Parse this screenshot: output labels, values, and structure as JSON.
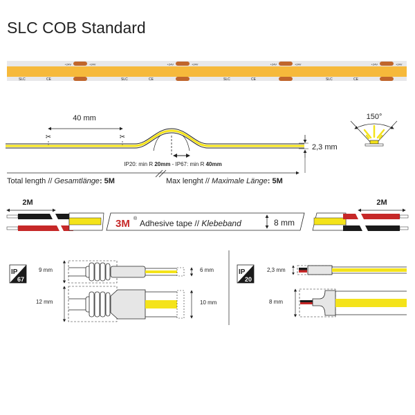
{
  "title": "SLC COB Standard",
  "colors": {
    "cob_yellow": "#f6b93b",
    "wire_red": "#c62828",
    "wire_black": "#1a1a1a",
    "strip_yellow": "#f4e31a",
    "pad_copper": "#c0662c"
  },
  "strip": {
    "pad_label": "+24V",
    "brand_mark": "SLC",
    "ce_mark": "CE"
  },
  "cut": {
    "distance": "40 mm",
    "scissors_icon": "scissors-icon",
    "bend_radius_ip20": "IP20: min R ",
    "bend_radius_ip20_value": "20mm",
    "bend_separator": " - IP67: min R ",
    "bend_radius_ip67_value": "40mm",
    "height": "2,3 mm",
    "total_length_label": "Total length // ",
    "total_length_de": "Gesamtlänge",
    "total_length_value": ": 5M",
    "max_length_label": "Max lenght // ",
    "max_length_de": "Maximale Länge",
    "max_length_value": ": 5M",
    "beam_angle": "150°"
  },
  "tape": {
    "left_cable": "2M",
    "right_cable": "2M",
    "brand": "3M",
    "registered": "®",
    "label": "Adhesive tape // ",
    "label_de": "Klebeband",
    "width": "8 mm"
  },
  "connectors": {
    "ip67_badge": {
      "top": "IP",
      "bottom": "67"
    },
    "ip20_badge": {
      "top": "IP",
      "bottom": "20"
    },
    "ip67_small": {
      "connector": "9 mm",
      "strip": "6 mm"
    },
    "ip67_large": {
      "connector": "12 mm",
      "strip": "10 mm"
    },
    "ip20_small": {
      "connector": "2,3 mm"
    },
    "ip20_large": {
      "connector": "8 mm"
    }
  }
}
